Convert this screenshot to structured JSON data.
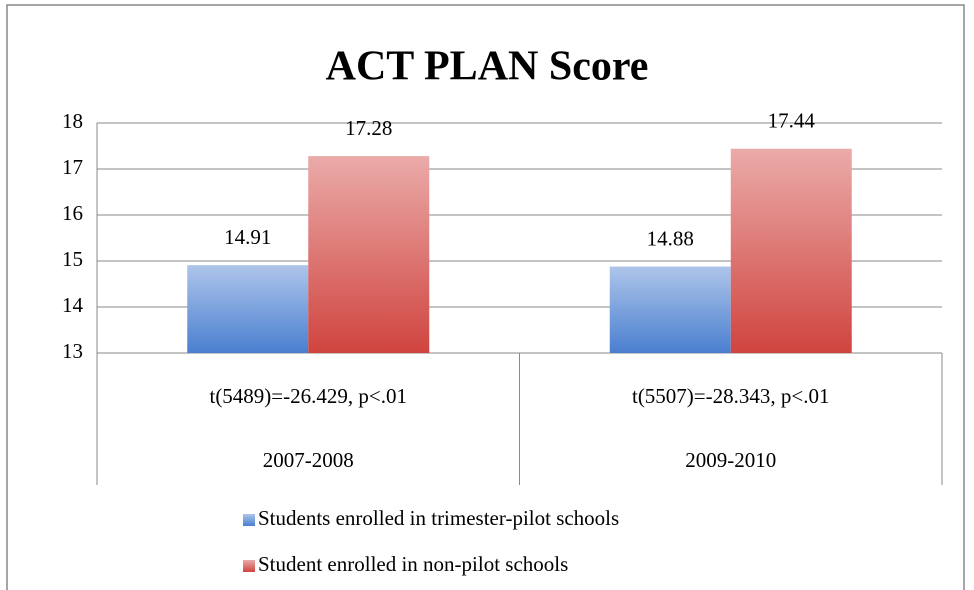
{
  "chart_data": {
    "type": "bar",
    "title": "ACT PLAN Score",
    "categories": [
      "2007-2008",
      "2009-2010"
    ],
    "annotations": [
      "t(5489)=-26.429, p<.01",
      "t(5507)=-28.343, p<.01"
    ],
    "series": [
      {
        "name": "Students enrolled in trimester-pilot schools",
        "color": "#4a7fd0",
        "values": [
          14.91,
          14.88
        ]
      },
      {
        "name": "Student enrolled in non-pilot schools",
        "color": "#d0443f",
        "values": [
          17.28,
          17.44
        ]
      }
    ],
    "ylim": [
      13,
      18
    ],
    "yticks": [
      13,
      14,
      15,
      16,
      17,
      18
    ],
    "grid": true,
    "legend": "bottom"
  }
}
